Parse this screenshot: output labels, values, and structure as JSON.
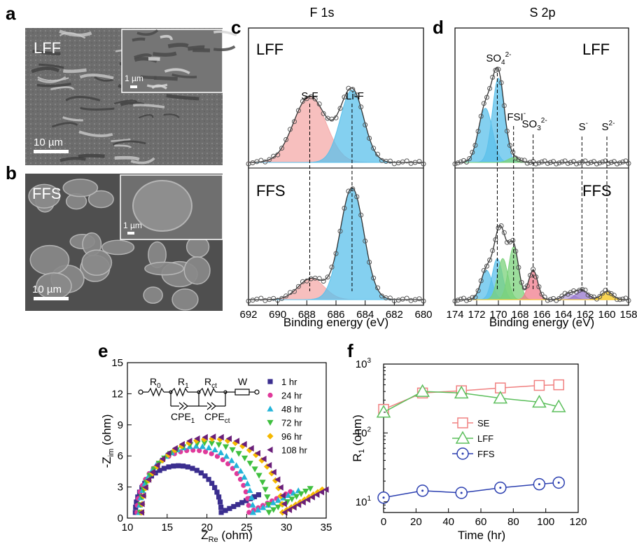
{
  "panels": {
    "a": {
      "letter": "a",
      "sample": "LFF",
      "scale_main": "10 µm",
      "scale_inset": "1 µm"
    },
    "b": {
      "letter": "b",
      "sample": "FFS",
      "scale_main": "10 µm",
      "scale_inset": "1 µm"
    },
    "c": {
      "letter": "c",
      "title": "F 1s"
    },
    "d": {
      "letter": "d",
      "title": "S 2p"
    },
    "e": {
      "letter": "e"
    },
    "f": {
      "letter": "f"
    }
  },
  "circuit": {
    "r0": "R",
    "r0_sub": "0",
    "r1": "R",
    "r1_sub": "1",
    "rct": "R",
    "rct_sub": "ct",
    "w": "W",
    "cpe1": "CPE",
    "cpe1_sub": "1",
    "cpect": "CPE",
    "cpect_sub": "ct"
  },
  "chart_data": [
    {
      "id": "c",
      "type": "line",
      "title": "F 1s",
      "xlabel": "Binding energy (eV)",
      "xlim": [
        692,
        680
      ],
      "x_reversed": true,
      "xticks": [
        692,
        690,
        688,
        686,
        684,
        682,
        680
      ],
      "peaks": [
        {
          "label": "S-F",
          "x": 687.8
        },
        {
          "label": "Li-F",
          "x": 684.9
        }
      ],
      "subplots": [
        {
          "name": "LFF",
          "components": [
            {
              "center": 687.8,
              "height": 0.55,
              "fwhm": 2.6,
              "color": "#f4a9a8"
            },
            {
              "center": 684.9,
              "height": 0.6,
              "fwhm": 1.9,
              "color": "#5bc0eb"
            }
          ]
        },
        {
          "name": "FFS",
          "components": [
            {
              "center": 687.7,
              "height": 0.18,
              "fwhm": 2.1,
              "color": "#f4a9a8"
            },
            {
              "center": 684.9,
              "height": 0.95,
              "fwhm": 1.9,
              "color": "#5bc0eb"
            }
          ]
        }
      ]
    },
    {
      "id": "d",
      "type": "line",
      "title": "S 2p",
      "xlabel": "Binding energy (eV)",
      "xlim": [
        174,
        158
      ],
      "x_reversed": true,
      "xticks": [
        174,
        172,
        170,
        168,
        166,
        164,
        162,
        160,
        158
      ],
      "peaks": [
        {
          "label": "SO4 2-",
          "main": "SO",
          "sub": "4",
          "sup": "2-",
          "x": 170.1
        },
        {
          "label": "FSI-",
          "main": "FSI",
          "sub": "",
          "sup": "-",
          "x": 168.6
        },
        {
          "label": "SO3 2-",
          "main": "SO",
          "sub": "3",
          "sup": "2-",
          "x": 166.8
        },
        {
          "label": "S-",
          "main": "S",
          "sub": "",
          "sup": "-",
          "x": 162.3
        },
        {
          "label": "S2-",
          "main": "S",
          "sub": "",
          "sup": "2-",
          "x": 160.0
        }
      ],
      "subplots": [
        {
          "name": "LFF",
          "components": [
            {
              "center": 171.2,
              "height": 0.45,
              "fwhm": 1.5,
              "color": "#5bc0eb"
            },
            {
              "center": 170.0,
              "height": 0.7,
              "fwhm": 1.3,
              "color": "#5bc0eb"
            },
            {
              "center": 168.6,
              "height": 0.04,
              "fwhm": 1.2,
              "color": "#7bd27b"
            }
          ]
        },
        {
          "name": "FFS",
          "components": [
            {
              "center": 171.1,
              "height": 0.25,
              "fwhm": 1.2,
              "color": "#5bc0eb"
            },
            {
              "center": 170.1,
              "height": 0.35,
              "fwhm": 1.1,
              "color": "#5bc0eb"
            },
            {
              "center": 169.6,
              "height": 0.35,
              "fwhm": 1.1,
              "color": "#7bd27b"
            },
            {
              "center": 168.6,
              "height": 0.45,
              "fwhm": 1.1,
              "color": "#7bd27b"
            },
            {
              "center": 166.8,
              "height": 0.25,
              "fwhm": 1.0,
              "color": "#f07c8c"
            },
            {
              "center": 163.5,
              "height": 0.05,
              "fwhm": 1.3,
              "color": "#b39ddb"
            },
            {
              "center": 162.3,
              "height": 0.08,
              "fwhm": 1.3,
              "color": "#9575cd"
            },
            {
              "center": 160.0,
              "height": 0.07,
              "fwhm": 1.2,
              "color": "#f5c518"
            }
          ]
        }
      ]
    },
    {
      "id": "e",
      "type": "scatter",
      "xlabel": "Z_Re (ohm)",
      "ylabel": "-Z_im (ohm)",
      "xlim": [
        10,
        35
      ],
      "ylim": [
        0,
        15
      ],
      "xticks": [
        10,
        15,
        20,
        25,
        30,
        35
      ],
      "yticks": [
        0,
        3,
        6,
        9,
        12,
        15
      ],
      "series": [
        {
          "name": "1 hr",
          "color": "#3b2e8f",
          "marker": "square",
          "x0": 11.0,
          "x1": 21.8,
          "tail_end": 26.5,
          "tail_rise": 1.7
        },
        {
          "name": "24 hr",
          "color": "#e0399a",
          "marker": "circle",
          "x0": 11.2,
          "x1": 25.3,
          "tail_end": 30.5,
          "tail_rise": 2.0
        },
        {
          "name": "48 hr",
          "color": "#23b4d9",
          "marker": "triangle-up",
          "x0": 11.5,
          "x1": 25.8,
          "tail_end": 31.5,
          "tail_rise": 2.1
        },
        {
          "name": "72 hr",
          "color": "#3fbf3f",
          "marker": "triangle-down",
          "x0": 11.6,
          "x1": 27.8,
          "tail_end": 33.0,
          "tail_rise": 2.3
        },
        {
          "name": "96 hr",
          "color": "#f5b800",
          "marker": "diamond",
          "x0": 11.8,
          "x1": 29.5,
          "tail_end": 34.5,
          "tail_rise": 2.2
        },
        {
          "name": "108 hr",
          "color": "#6a1f7a",
          "marker": "triangle-left",
          "x0": 11.8,
          "x1": 29.8,
          "tail_end": 35.0,
          "tail_rise": 2.2
        }
      ],
      "arc_heights": [
        4.5,
        6.0,
        6.4,
        6.7,
        7.1,
        7.3
      ]
    },
    {
      "id": "f",
      "type": "line",
      "xlabel": "Time (hr)",
      "ylabel": "R_1 (ohm)",
      "xlim": [
        0,
        120
      ],
      "ylim": [
        7,
        1000
      ],
      "yscale": "log",
      "xticks": [
        0,
        20,
        40,
        60,
        80,
        100,
        120
      ],
      "yticks": [
        {
          "value": 10,
          "base": "10",
          "exp": "1"
        },
        {
          "value": 100,
          "base": "10",
          "exp": "2"
        },
        {
          "value": 1000,
          "base": "10",
          "exp": "3"
        }
      ],
      "x": [
        0,
        24,
        48,
        72,
        96,
        108
      ],
      "series": [
        {
          "name": "SE",
          "color": "#f08080",
          "marker": "square",
          "values": [
            220,
            380,
            410,
            450,
            490,
            500
          ]
        },
        {
          "name": "LFF",
          "color": "#5cbf5c",
          "marker": "triangle-up",
          "values": [
            200,
            400,
            380,
            320,
            280,
            240
          ]
        },
        {
          "name": "FFS",
          "color": "#2b3fb0",
          "marker": "circle-dot",
          "values": [
            11.5,
            14.5,
            13.5,
            16,
            18,
            19
          ]
        }
      ],
      "legend_position": "center-left"
    }
  ]
}
